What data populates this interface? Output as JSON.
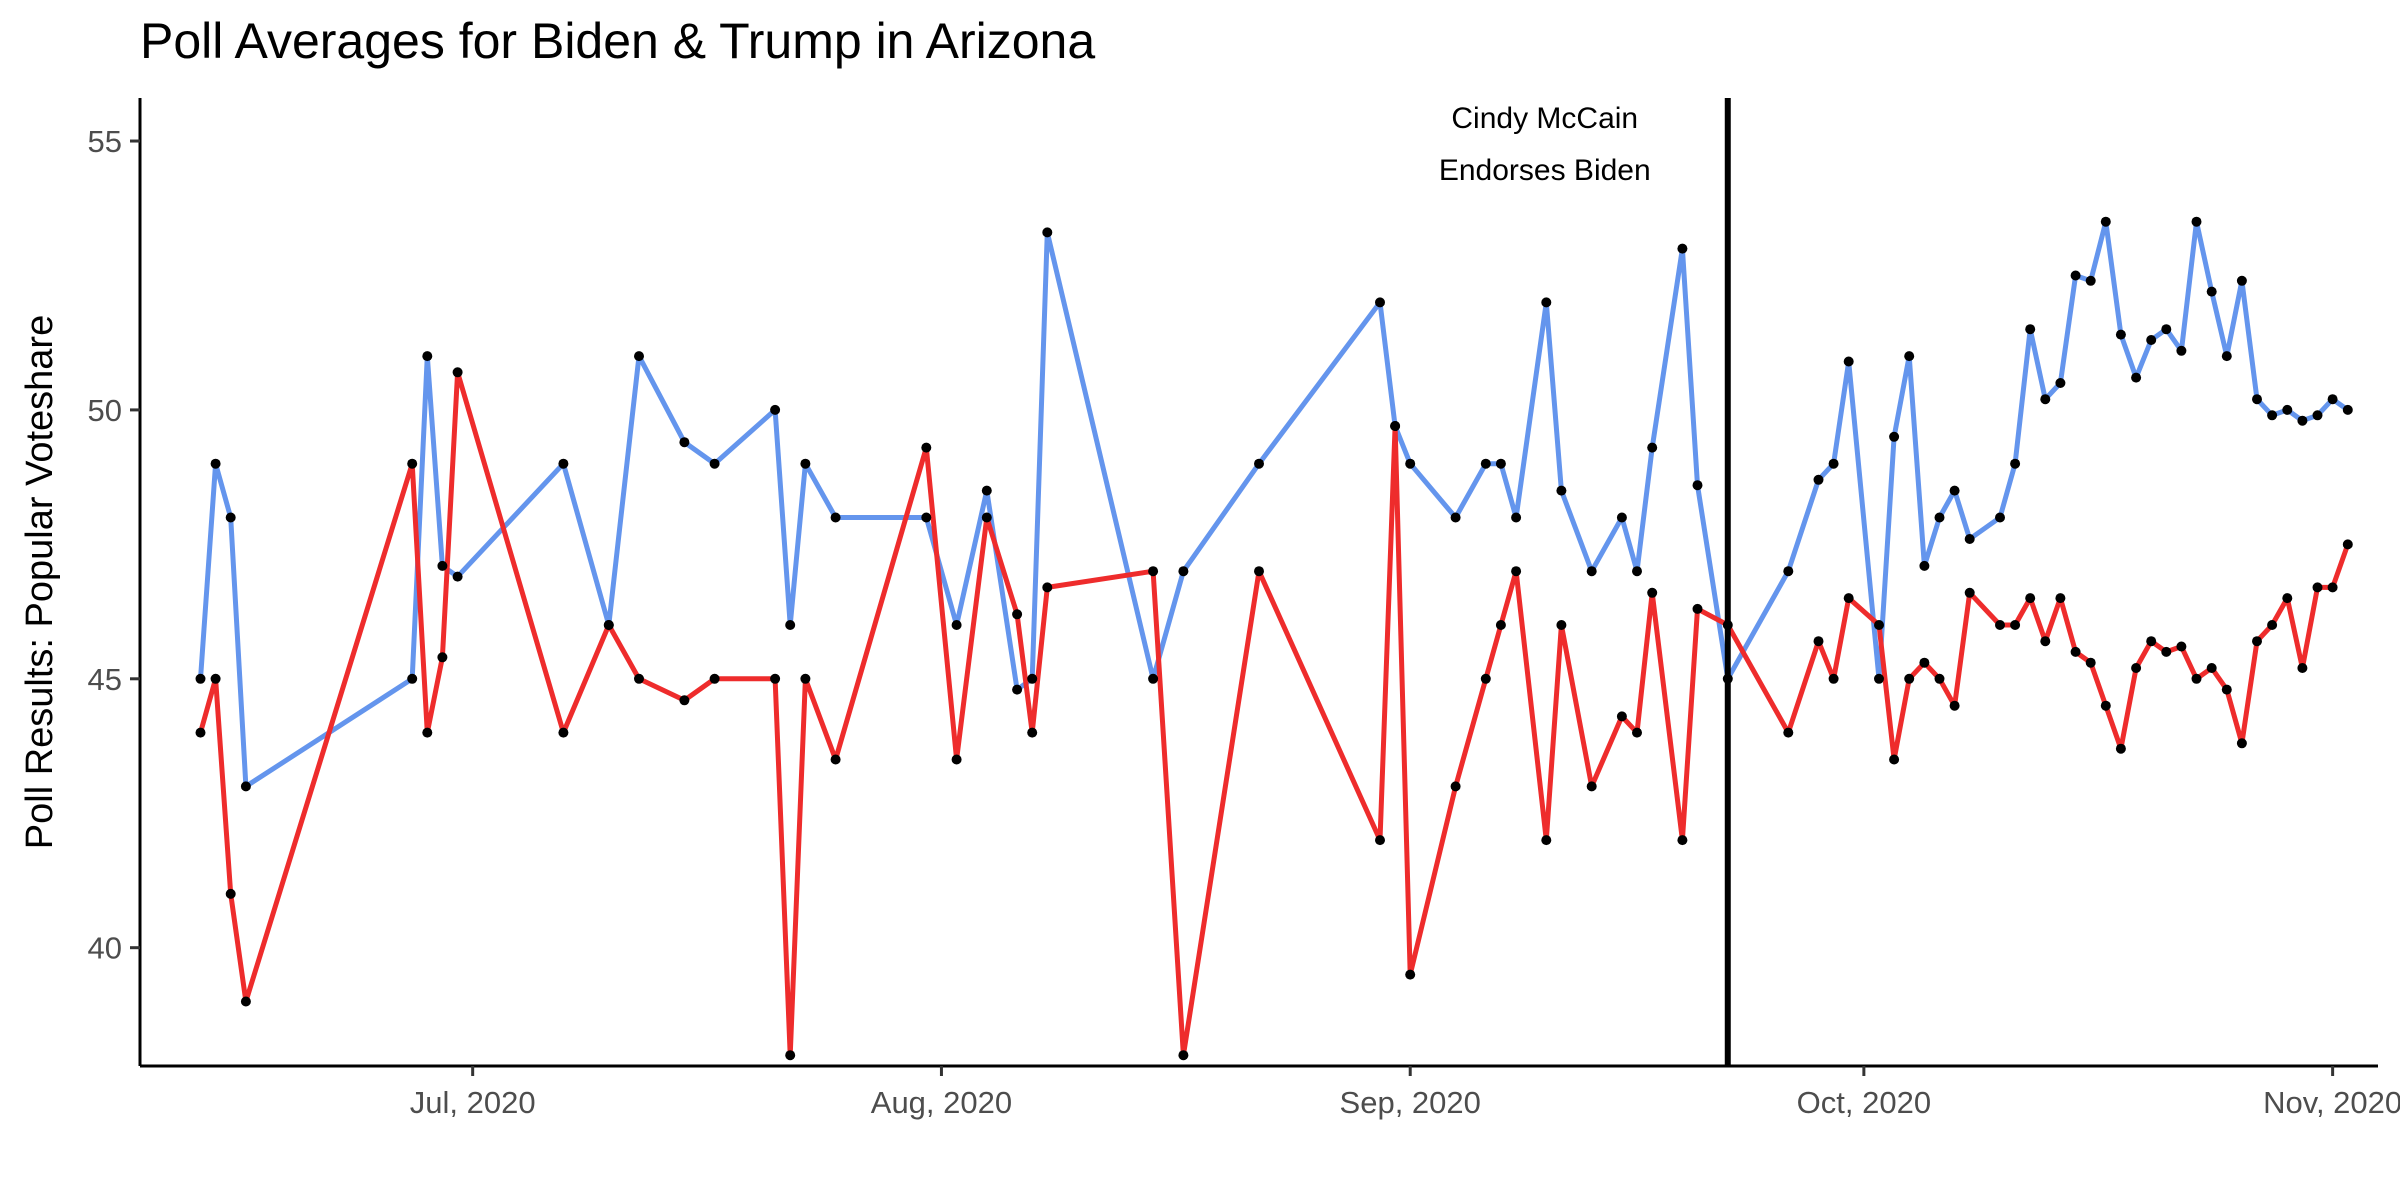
{
  "chart_data": {
    "type": "line",
    "title": "Poll Averages for Biden & Trump in Arizona",
    "xlabel": "",
    "ylabel": "Poll Results: Popular Voteshare",
    "xlim": [
      "2020-06-09",
      "2020-11-04"
    ],
    "ylim": [
      37.8,
      55.8
    ],
    "x_ticks": [
      {
        "date": "2020-07-01",
        "label": "Jul, 2020"
      },
      {
        "date": "2020-08-01",
        "label": "Aug, 2020"
      },
      {
        "date": "2020-09-01",
        "label": "Sep, 2020"
      },
      {
        "date": "2020-10-01",
        "label": "Oct, 2020"
      },
      {
        "date": "2020-11-01",
        "label": "Nov, 2020"
      }
    ],
    "y_ticks": [
      40,
      45,
      50,
      55
    ],
    "grid": false,
    "legend": "none",
    "series": [
      {
        "color": "#6495ED",
        "x": [
          "2020-06-13",
          "2020-06-14",
          "2020-06-15",
          "2020-06-16",
          "2020-06-27",
          "2020-06-28",
          "2020-06-29",
          "2020-06-30",
          "2020-07-07",
          "2020-07-10",
          "2020-07-12",
          "2020-07-15",
          "2020-07-17",
          "2020-07-21",
          "2020-07-22",
          "2020-07-23",
          "2020-07-25",
          "2020-07-31",
          "2020-08-02",
          "2020-08-04",
          "2020-08-06",
          "2020-08-07",
          "2020-08-08",
          "2020-08-15",
          "2020-08-17",
          "2020-08-22",
          "2020-08-30",
          "2020-08-31",
          "2020-09-01",
          "2020-09-04",
          "2020-09-06",
          "2020-09-07",
          "2020-09-08",
          "2020-09-10",
          "2020-09-11",
          "2020-09-13",
          "2020-09-15",
          "2020-09-16",
          "2020-09-17",
          "2020-09-19",
          "2020-09-20",
          "2020-09-22",
          "2020-09-26",
          "2020-09-28",
          "2020-09-29",
          "2020-09-30",
          "2020-10-02",
          "2020-10-03",
          "2020-10-04",
          "2020-10-05",
          "2020-10-06",
          "2020-10-07",
          "2020-10-08",
          "2020-10-10",
          "2020-10-11",
          "2020-10-12",
          "2020-10-13",
          "2020-10-14",
          "2020-10-15",
          "2020-10-16",
          "2020-10-17",
          "2020-10-18",
          "2020-10-19",
          "2020-10-20",
          "2020-10-21",
          "2020-10-22",
          "2020-10-23",
          "2020-10-24",
          "2020-10-25",
          "2020-10-26",
          "2020-10-27",
          "2020-10-28",
          "2020-10-29",
          "2020-10-30",
          "2020-10-31",
          "2020-11-01",
          "2020-11-02"
        ],
        "y": [
          45.0,
          49.0,
          48.0,
          43.0,
          45.0,
          51.0,
          47.1,
          46.9,
          49.0,
          46.0,
          51.0,
          49.4,
          49.0,
          50.0,
          46.0,
          49.0,
          48.0,
          48.0,
          46.0,
          48.5,
          44.8,
          45.0,
          53.3,
          45.0,
          47.0,
          49.0,
          52.0,
          49.7,
          49.0,
          48.0,
          49.0,
          49.0,
          48.0,
          52.0,
          48.5,
          47.0,
          48.0,
          47.0,
          49.3,
          53.0,
          48.6,
          45.0,
          47.0,
          48.7,
          49.0,
          50.9,
          45.0,
          49.5,
          51.0,
          47.1,
          48.0,
          48.5,
          47.6,
          48.0,
          49.0,
          51.5,
          50.2,
          50.5,
          52.5,
          52.4,
          53.5,
          51.4,
          50.6,
          51.3,
          51.5,
          51.1,
          53.5,
          52.2,
          51.0,
          52.4,
          50.2,
          49.9,
          50.0,
          49.8,
          49.9,
          50.2,
          50.0
        ]
      },
      {
        "color": "#EE2C2C",
        "x": [
          "2020-06-13",
          "2020-06-14",
          "2020-06-15",
          "2020-06-16",
          "2020-06-27",
          "2020-06-28",
          "2020-06-29",
          "2020-06-30",
          "2020-07-07",
          "2020-07-10",
          "2020-07-12",
          "2020-07-15",
          "2020-07-17",
          "2020-07-21",
          "2020-07-22",
          "2020-07-23",
          "2020-07-25",
          "2020-07-31",
          "2020-08-02",
          "2020-08-04",
          "2020-08-06",
          "2020-08-07",
          "2020-08-08",
          "2020-08-15",
          "2020-08-17",
          "2020-08-22",
          "2020-08-30",
          "2020-08-31",
          "2020-09-01",
          "2020-09-04",
          "2020-09-06",
          "2020-09-07",
          "2020-09-08",
          "2020-09-10",
          "2020-09-11",
          "2020-09-13",
          "2020-09-15",
          "2020-09-16",
          "2020-09-17",
          "2020-09-19",
          "2020-09-20",
          "2020-09-22",
          "2020-09-26",
          "2020-09-28",
          "2020-09-29",
          "2020-09-30",
          "2020-10-02",
          "2020-10-03",
          "2020-10-04",
          "2020-10-05",
          "2020-10-06",
          "2020-10-07",
          "2020-10-08",
          "2020-10-10",
          "2020-10-11",
          "2020-10-12",
          "2020-10-13",
          "2020-10-14",
          "2020-10-15",
          "2020-10-16",
          "2020-10-17",
          "2020-10-18",
          "2020-10-19",
          "2020-10-20",
          "2020-10-21",
          "2020-10-22",
          "2020-10-23",
          "2020-10-24",
          "2020-10-25",
          "2020-10-26",
          "2020-10-27",
          "2020-10-28",
          "2020-10-29",
          "2020-10-30",
          "2020-10-31",
          "2020-11-01",
          "2020-11-02"
        ],
        "y": [
          44.0,
          45.0,
          41.0,
          39.0,
          49.0,
          44.0,
          45.4,
          50.7,
          44.0,
          46.0,
          45.0,
          44.6,
          45.0,
          45.0,
          38.0,
          45.0,
          43.5,
          49.3,
          43.5,
          48.0,
          46.2,
          44.0,
          46.7,
          47.0,
          38.0,
          47.0,
          42.0,
          49.7,
          39.5,
          43.0,
          45.0,
          46.0,
          47.0,
          42.0,
          46.0,
          43.0,
          44.3,
          44.0,
          46.6,
          42.0,
          46.3,
          46.0,
          44.0,
          45.7,
          45.0,
          46.5,
          46.0,
          43.5,
          45.0,
          45.3,
          45.0,
          44.5,
          46.6,
          46.0,
          46.0,
          46.5,
          45.7,
          46.5,
          45.5,
          45.3,
          44.5,
          43.7,
          45.2,
          45.7,
          45.5,
          45.6,
          45.0,
          45.2,
          44.8,
          43.8,
          45.7,
          46.0,
          46.5,
          45.2,
          46.7,
          46.7,
          47.5
        ]
      }
    ],
    "vline": {
      "date": "2020-09-22",
      "label_lines": [
        "Cindy McCain",
        "Endorses Biden"
      ]
    }
  }
}
